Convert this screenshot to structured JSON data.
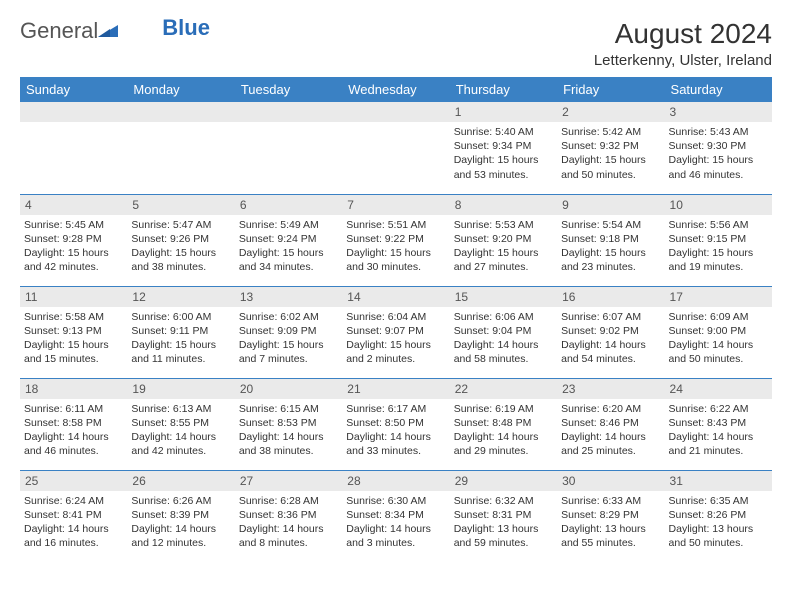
{
  "brand": {
    "name1": "General",
    "name2": "Blue"
  },
  "title": "August 2024",
  "location": "Letterkenny, Ulster, Ireland",
  "colors": {
    "header_bg": "#3a81c4",
    "header_text": "#ffffff",
    "daynum_bg": "#eaeaea",
    "border": "#3a81c4",
    "text": "#333333",
    "logo_gray": "#555555",
    "logo_blue": "#2a6db8"
  },
  "days_of_week": [
    "Sunday",
    "Monday",
    "Tuesday",
    "Wednesday",
    "Thursday",
    "Friday",
    "Saturday"
  ],
  "weeks": [
    [
      null,
      null,
      null,
      null,
      {
        "n": "1",
        "sr": "5:40 AM",
        "ss": "9:34 PM",
        "dl": "15 hours and 53 minutes."
      },
      {
        "n": "2",
        "sr": "5:42 AM",
        "ss": "9:32 PM",
        "dl": "15 hours and 50 minutes."
      },
      {
        "n": "3",
        "sr": "5:43 AM",
        "ss": "9:30 PM",
        "dl": "15 hours and 46 minutes."
      }
    ],
    [
      {
        "n": "4",
        "sr": "5:45 AM",
        "ss": "9:28 PM",
        "dl": "15 hours and 42 minutes."
      },
      {
        "n": "5",
        "sr": "5:47 AM",
        "ss": "9:26 PM",
        "dl": "15 hours and 38 minutes."
      },
      {
        "n": "6",
        "sr": "5:49 AM",
        "ss": "9:24 PM",
        "dl": "15 hours and 34 minutes."
      },
      {
        "n": "7",
        "sr": "5:51 AM",
        "ss": "9:22 PM",
        "dl": "15 hours and 30 minutes."
      },
      {
        "n": "8",
        "sr": "5:53 AM",
        "ss": "9:20 PM",
        "dl": "15 hours and 27 minutes."
      },
      {
        "n": "9",
        "sr": "5:54 AM",
        "ss": "9:18 PM",
        "dl": "15 hours and 23 minutes."
      },
      {
        "n": "10",
        "sr": "5:56 AM",
        "ss": "9:15 PM",
        "dl": "15 hours and 19 minutes."
      }
    ],
    [
      {
        "n": "11",
        "sr": "5:58 AM",
        "ss": "9:13 PM",
        "dl": "15 hours and 15 minutes."
      },
      {
        "n": "12",
        "sr": "6:00 AM",
        "ss": "9:11 PM",
        "dl": "15 hours and 11 minutes."
      },
      {
        "n": "13",
        "sr": "6:02 AM",
        "ss": "9:09 PM",
        "dl": "15 hours and 7 minutes."
      },
      {
        "n": "14",
        "sr": "6:04 AM",
        "ss": "9:07 PM",
        "dl": "15 hours and 2 minutes."
      },
      {
        "n": "15",
        "sr": "6:06 AM",
        "ss": "9:04 PM",
        "dl": "14 hours and 58 minutes."
      },
      {
        "n": "16",
        "sr": "6:07 AM",
        "ss": "9:02 PM",
        "dl": "14 hours and 54 minutes."
      },
      {
        "n": "17",
        "sr": "6:09 AM",
        "ss": "9:00 PM",
        "dl": "14 hours and 50 minutes."
      }
    ],
    [
      {
        "n": "18",
        "sr": "6:11 AM",
        "ss": "8:58 PM",
        "dl": "14 hours and 46 minutes."
      },
      {
        "n": "19",
        "sr": "6:13 AM",
        "ss": "8:55 PM",
        "dl": "14 hours and 42 minutes."
      },
      {
        "n": "20",
        "sr": "6:15 AM",
        "ss": "8:53 PM",
        "dl": "14 hours and 38 minutes."
      },
      {
        "n": "21",
        "sr": "6:17 AM",
        "ss": "8:50 PM",
        "dl": "14 hours and 33 minutes."
      },
      {
        "n": "22",
        "sr": "6:19 AM",
        "ss": "8:48 PM",
        "dl": "14 hours and 29 minutes."
      },
      {
        "n": "23",
        "sr": "6:20 AM",
        "ss": "8:46 PM",
        "dl": "14 hours and 25 minutes."
      },
      {
        "n": "24",
        "sr": "6:22 AM",
        "ss": "8:43 PM",
        "dl": "14 hours and 21 minutes."
      }
    ],
    [
      {
        "n": "25",
        "sr": "6:24 AM",
        "ss": "8:41 PM",
        "dl": "14 hours and 16 minutes."
      },
      {
        "n": "26",
        "sr": "6:26 AM",
        "ss": "8:39 PM",
        "dl": "14 hours and 12 minutes."
      },
      {
        "n": "27",
        "sr": "6:28 AM",
        "ss": "8:36 PM",
        "dl": "14 hours and 8 minutes."
      },
      {
        "n": "28",
        "sr": "6:30 AM",
        "ss": "8:34 PM",
        "dl": "14 hours and 3 minutes."
      },
      {
        "n": "29",
        "sr": "6:32 AM",
        "ss": "8:31 PM",
        "dl": "13 hours and 59 minutes."
      },
      {
        "n": "30",
        "sr": "6:33 AM",
        "ss": "8:29 PM",
        "dl": "13 hours and 55 minutes."
      },
      {
        "n": "31",
        "sr": "6:35 AM",
        "ss": "8:26 PM",
        "dl": "13 hours and 50 minutes."
      }
    ]
  ],
  "labels": {
    "sunrise": "Sunrise:",
    "sunset": "Sunset:",
    "daylight": "Daylight:"
  }
}
